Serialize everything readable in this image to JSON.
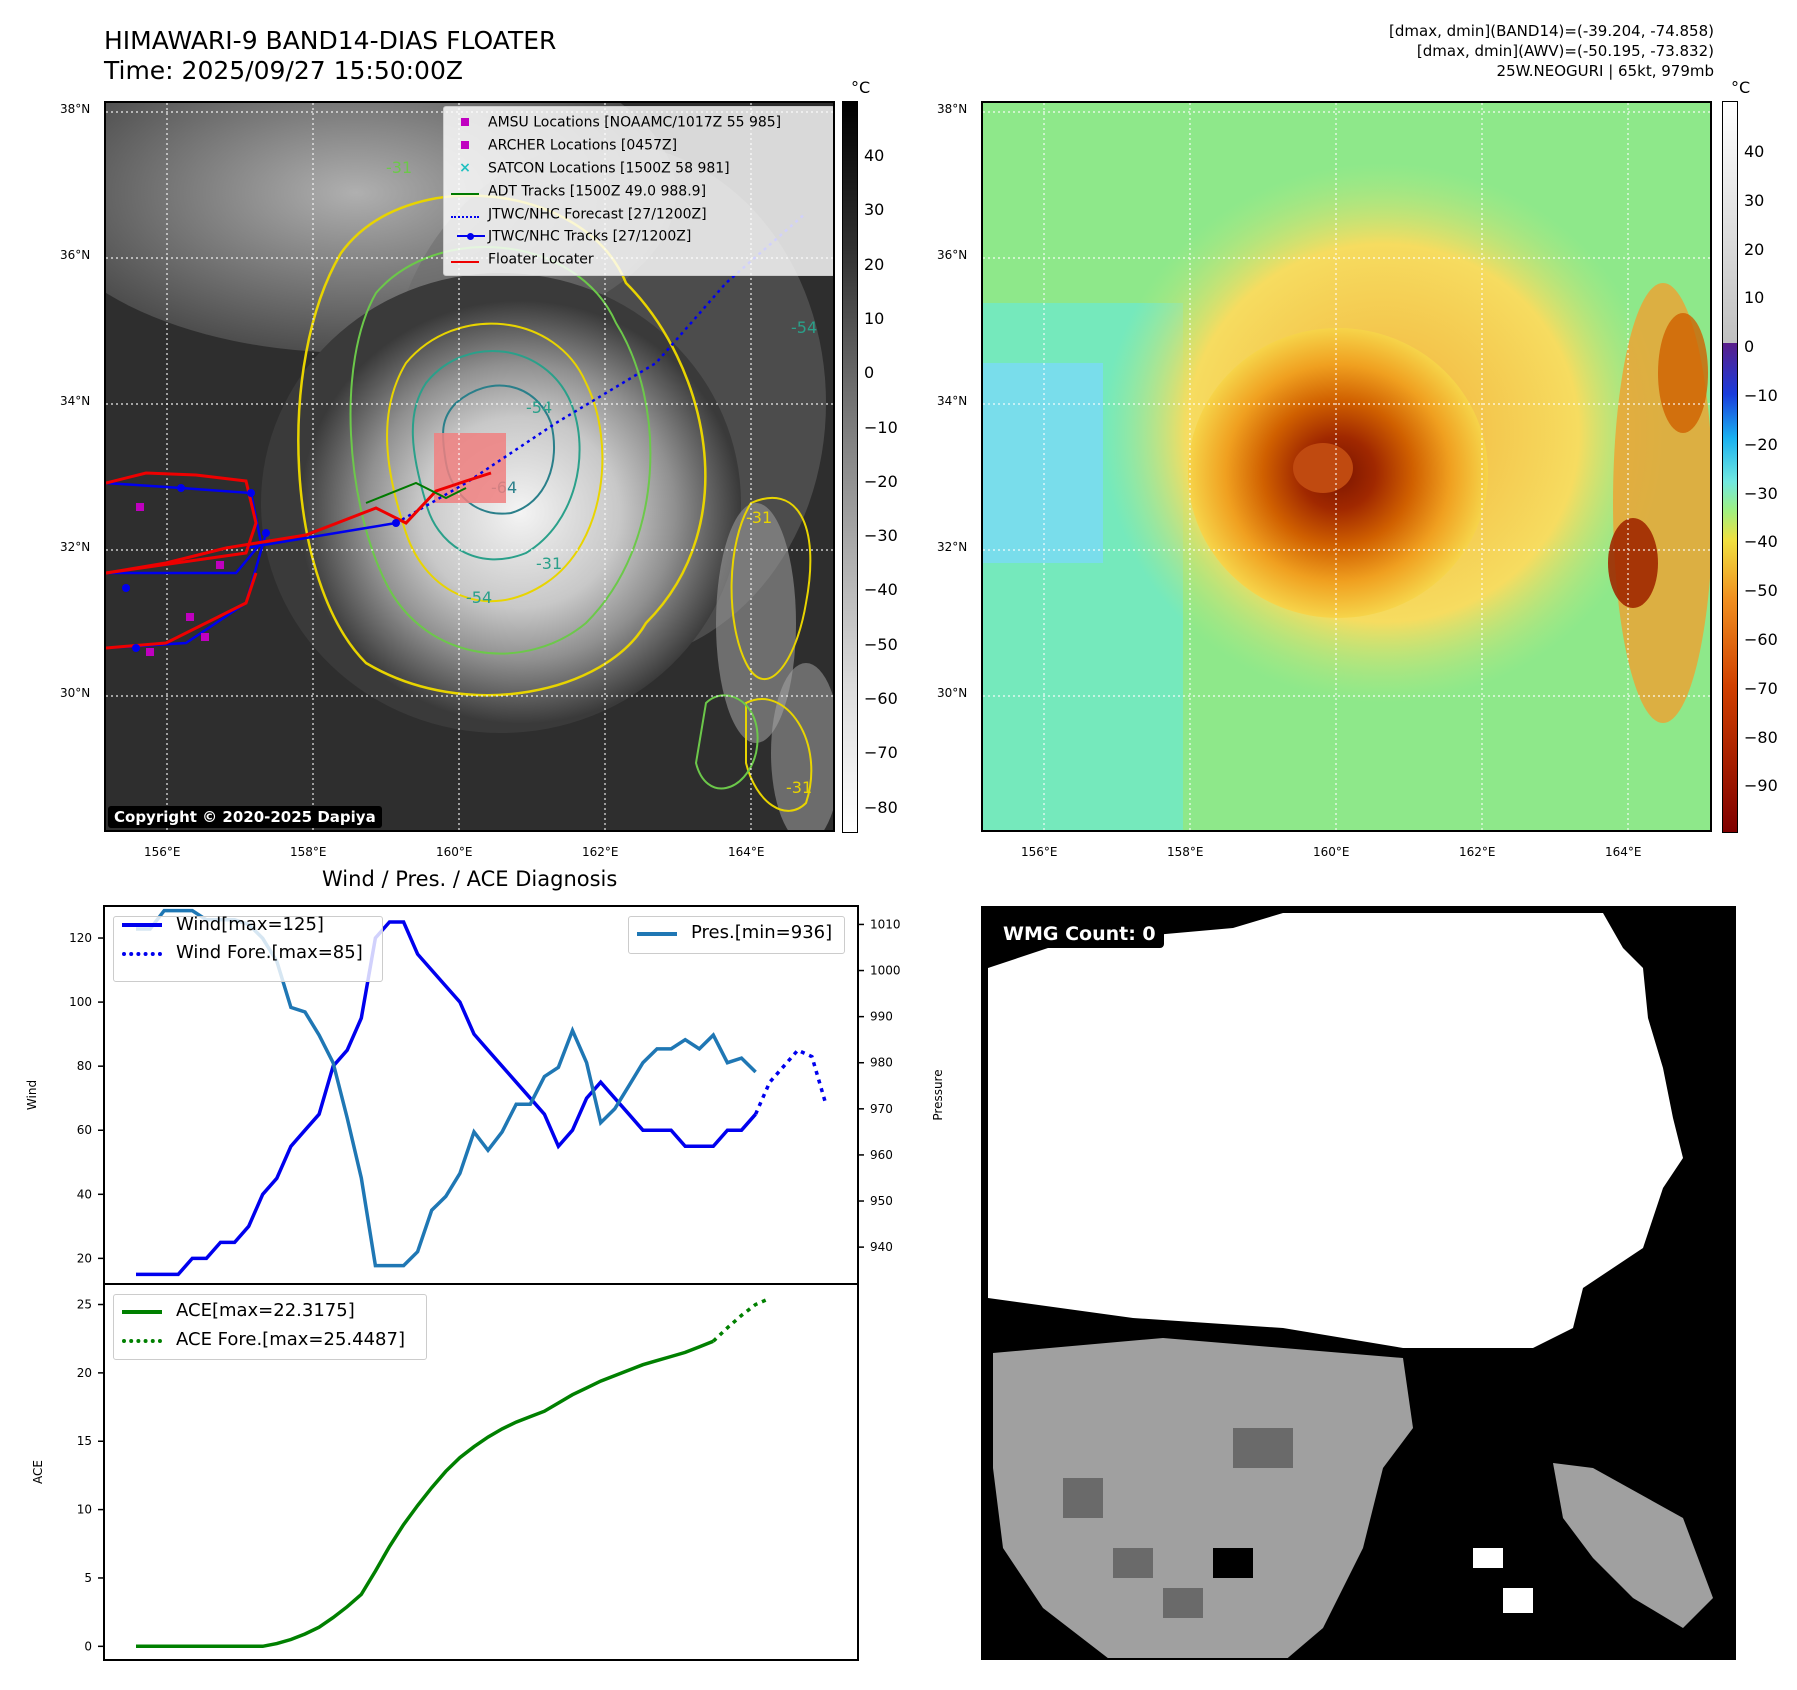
{
  "header": {
    "title_line1": "HIMAWARI-9 BAND14-DIAS FLOATER",
    "title_line2": "Time: 2025/09/27 15:50:00Z",
    "info_line1": "[dmax, dmin](BAND14)=(-39.204, -74.858)",
    "info_line2": "[dmax, dmin](AWV)=(-50.195, -73.832)",
    "info_line3": "25W.NEOGURI | 65kt, 979mb"
  },
  "ir_map": {
    "lat_labels": [
      "38°N",
      "36°N",
      "34°N",
      "32°N",
      "30°N"
    ],
    "lon_labels": [
      "156°E",
      "158°E",
      "160°E",
      "162°E",
      "164°E"
    ],
    "copyright": "Copyright © 2020-2025 Dapiya",
    "contour_labels": [
      "-31",
      "-54",
      "-64",
      "-31",
      "-54",
      "-31",
      "-54",
      "-31"
    ],
    "colorbar": {
      "unit": "°C",
      "ticks": [
        "40",
        "30",
        "20",
        "10",
        "0",
        "−10",
        "−20",
        "−30",
        "−40",
        "−50",
        "−60",
        "−70",
        "−80"
      ]
    },
    "legend": [
      {
        "label": "AMSU Locations [NOAAMC/1017Z 55 985]",
        "color": "#c000c0",
        "marker": "square"
      },
      {
        "label": "ARCHER Locations [0457Z]",
        "color": "#c000c0",
        "marker": "square"
      },
      {
        "label": "SATCON Locations [1500Z 58 981]",
        "color": "#20c0c0",
        "marker": "x"
      },
      {
        "label": "ADT Tracks [1500Z 49.0 988.9]",
        "color": "#007a00",
        "marker": "line"
      },
      {
        "label": "JTWC/NHC Forecast [27/1200Z]",
        "color": "#0000ee",
        "marker": "dotted"
      },
      {
        "label": "JTWC/NHC Tracks [27/1200Z]",
        "color": "#0000ee",
        "marker": "line-dot"
      },
      {
        "label": "Floater Locater",
        "color": "#ee0000",
        "marker": "line"
      }
    ]
  },
  "wv_map": {
    "lat_labels": [
      "38°N",
      "36°N",
      "34°N",
      "32°N",
      "30°N"
    ],
    "lon_labels": [
      "156°E",
      "158°E",
      "160°E",
      "162°E",
      "164°E"
    ],
    "colorbar": {
      "unit": "°C",
      "ticks": [
        "40",
        "30",
        "20",
        "10",
        "0",
        "−10",
        "−20",
        "−30",
        "−40",
        "−50",
        "−60",
        "−70",
        "−80",
        "−90"
      ]
    }
  },
  "wmg": {
    "badge": "WMG Count: 0"
  },
  "chart_data": [
    {
      "type": "line",
      "title": "Wind / Pres. / ACE Diagnosis",
      "ylabel": "Wind",
      "y2label": "Pressure",
      "ylim": [
        12,
        130
      ],
      "y2lim": [
        932,
        1014
      ],
      "yticks": [
        20,
        40,
        60,
        80,
        100,
        120
      ],
      "y2ticks": [
        940,
        950,
        960,
        970,
        980,
        990,
        1000,
        1010
      ],
      "series": [
        {
          "name": "Wind[max=125]",
          "axis": "left",
          "color": "#0000ee",
          "style": "solid",
          "points": [
            [
              0,
              15
            ],
            [
              1,
              15
            ],
            [
              2,
              15
            ],
            [
              3,
              15
            ],
            [
              4,
              20
            ],
            [
              5,
              20
            ],
            [
              6,
              25
            ],
            [
              7,
              25
            ],
            [
              8,
              30
            ],
            [
              9,
              40
            ],
            [
              10,
              45
            ],
            [
              11,
              55
            ],
            [
              12,
              60
            ],
            [
              13,
              65
            ],
            [
              14,
              80
            ],
            [
              15,
              85
            ],
            [
              16,
              95
            ],
            [
              17,
              120
            ],
            [
              18,
              125
            ],
            [
              19,
              125
            ],
            [
              20,
              115
            ],
            [
              21,
              110
            ],
            [
              22,
              105
            ],
            [
              23,
              100
            ],
            [
              24,
              90
            ],
            [
              25,
              85
            ],
            [
              26,
              80
            ],
            [
              27,
              75
            ],
            [
              28,
              70
            ],
            [
              29,
              65
            ],
            [
              30,
              55
            ],
            [
              31,
              60
            ],
            [
              32,
              70
            ],
            [
              33,
              75
            ],
            [
              34,
              70
            ],
            [
              35,
              65
            ],
            [
              36,
              60
            ],
            [
              37,
              60
            ],
            [
              38,
              60
            ],
            [
              39,
              55
            ],
            [
              40,
              55
            ],
            [
              41,
              55
            ],
            [
              42,
              60
            ],
            [
              43,
              60
            ],
            [
              44,
              65
            ]
          ]
        },
        {
          "name": "Wind Fore.[max=85]",
          "axis": "left",
          "color": "#0000ee",
          "style": "dotted",
          "points": [
            [
              44,
              65
            ],
            [
              45,
              75
            ],
            [
              46,
              80
            ],
            [
              47,
              85
            ],
            [
              48,
              83
            ],
            [
              49,
              68
            ]
          ]
        },
        {
          "name": "Pres.[min=936]",
          "axis": "right",
          "color": "#1f77b4",
          "style": "solid",
          "points": [
            [
              0,
              1009
            ],
            [
              1,
              1009
            ],
            [
              2,
              1013
            ],
            [
              3,
              1013
            ],
            [
              4,
              1013
            ],
            [
              5,
              1011
            ],
            [
              6,
              1011
            ],
            [
              7,
              1011
            ],
            [
              8,
              1010
            ],
            [
              9,
              1007
            ],
            [
              10,
              1002
            ],
            [
              11,
              992
            ],
            [
              12,
              991
            ],
            [
              13,
              986
            ],
            [
              14,
              980
            ],
            [
              15,
              968
            ],
            [
              16,
              955
            ],
            [
              17,
              936
            ],
            [
              18,
              936
            ],
            [
              19,
              936
            ],
            [
              20,
              939
            ],
            [
              21,
              948
            ],
            [
              22,
              951
            ],
            [
              23,
              956
            ],
            [
              24,
              965
            ],
            [
              25,
              961
            ],
            [
              26,
              965
            ],
            [
              27,
              971
            ],
            [
              28,
              971
            ],
            [
              29,
              977
            ],
            [
              30,
              979
            ],
            [
              31,
              987
            ],
            [
              32,
              980
            ],
            [
              33,
              967
            ],
            [
              34,
              970
            ],
            [
              35,
              975
            ],
            [
              36,
              980
            ],
            [
              37,
              983
            ],
            [
              38,
              983
            ],
            [
              39,
              985
            ],
            [
              40,
              983
            ],
            [
              41,
              986
            ],
            [
              42,
              980
            ],
            [
              43,
              981
            ],
            [
              44,
              978
            ]
          ]
        }
      ]
    },
    {
      "type": "line",
      "ylabel": "ACE",
      "ylim": [
        -1,
        26.5
      ],
      "yticks": [
        0,
        5,
        10,
        15,
        20,
        25
      ],
      "series": [
        {
          "name": "ACE[max=22.3175]",
          "color": "#008000",
          "style": "solid",
          "points": [
            [
              0,
              0
            ],
            [
              1,
              0
            ],
            [
              2,
              0
            ],
            [
              3,
              0
            ],
            [
              4,
              0
            ],
            [
              5,
              0
            ],
            [
              6,
              0
            ],
            [
              7,
              0
            ],
            [
              8,
              0
            ],
            [
              9,
              0
            ],
            [
              10,
              0.2
            ],
            [
              11,
              0.5
            ],
            [
              12,
              0.9
            ],
            [
              13,
              1.4
            ],
            [
              14,
              2.1
            ],
            [
              15,
              2.9
            ],
            [
              16,
              3.8
            ],
            [
              17,
              5.5
            ],
            [
              18,
              7.3
            ],
            [
              19,
              8.9
            ],
            [
              20,
              10.3
            ],
            [
              21,
              11.6
            ],
            [
              22,
              12.8
            ],
            [
              23,
              13.8
            ],
            [
              24,
              14.6
            ],
            [
              25,
              15.3
            ],
            [
              26,
              15.9
            ],
            [
              27,
              16.4
            ],
            [
              28,
              16.8
            ],
            [
              29,
              17.2
            ],
            [
              30,
              17.8
            ],
            [
              31,
              18.4
            ],
            [
              32,
              18.9
            ],
            [
              33,
              19.4
            ],
            [
              34,
              19.8
            ],
            [
              35,
              20.2
            ],
            [
              36,
              20.6
            ],
            [
              37,
              20.9
            ],
            [
              38,
              21.2
            ],
            [
              39,
              21.5
            ],
            [
              40,
              21.9
            ],
            [
              41,
              22.3175
            ]
          ]
        },
        {
          "name": "ACE Fore.[max=25.4487]",
          "color": "#008000",
          "style": "dotted",
          "points": [
            [
              41,
              22.3175
            ],
            [
              42,
              23.3
            ],
            [
              43,
              24.2
            ],
            [
              44,
              25.0
            ],
            [
              45,
              25.4487
            ]
          ]
        }
      ]
    }
  ]
}
